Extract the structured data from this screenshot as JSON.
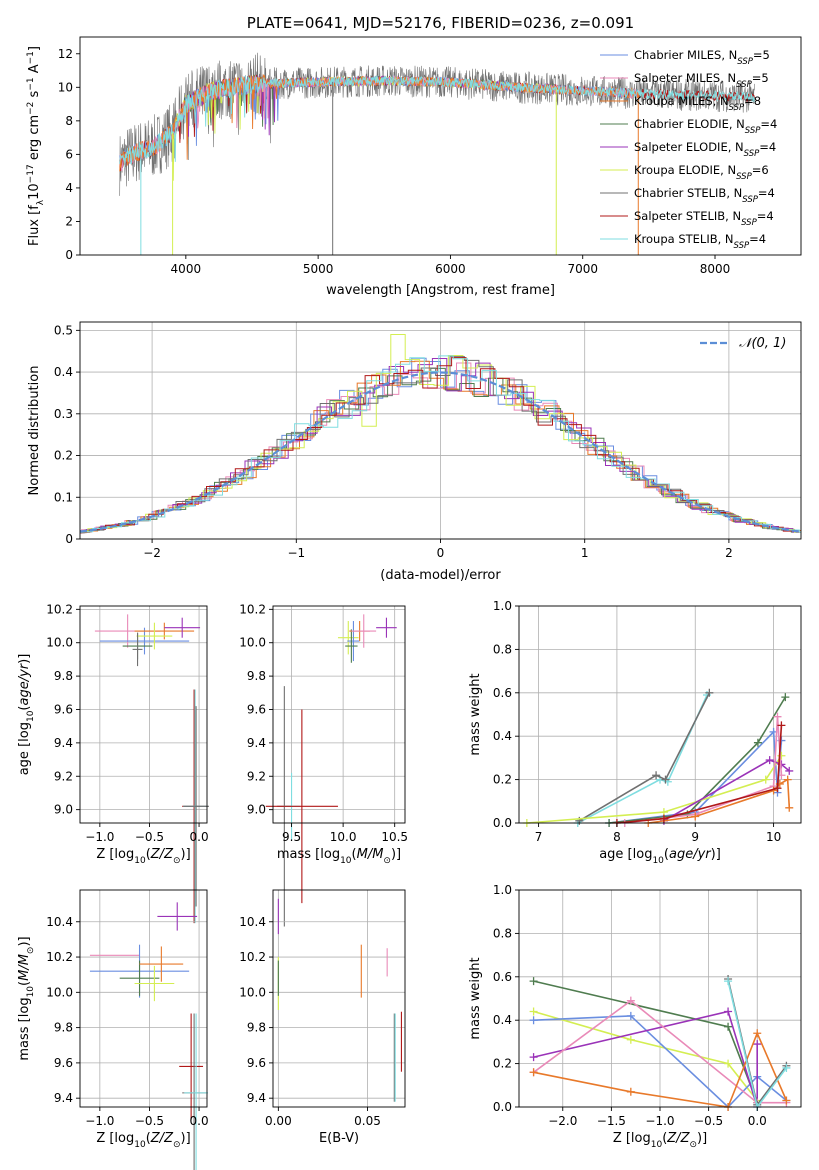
{
  "colors": {
    "Chabrier MILES": "#6a8ee0",
    "Salpeter MILES": "#e98ab8",
    "Kroupa MILES": "#e8792a",
    "Chabrier ELODIE": "#4f7c4f",
    "Salpeter ELODIE": "#9a33b8",
    "Kroupa ELODIE": "#d4ee52",
    "Chabrier STELIB": "#707070",
    "Salpeter STELIB": "#b01818",
    "Kroupa STELIB": "#7fdde0",
    "normal": "#5b8ed6"
  },
  "chart_data": [
    {
      "id": "spectrum",
      "type": "line",
      "title": "PLATE=0641, MJD=52176, FIBERID=0236, z=0.091",
      "xlabel": "wavelength [Angstrom, rest frame]",
      "ylabel": "Flux [fλ10⁻¹⁷ erg cm⁻² s⁻¹ A⁻¹]",
      "xlim": [
        3200,
        8650
      ],
      "ylim": [
        0,
        13
      ],
      "xticks": [
        4000,
        5000,
        6000,
        7000,
        8000
      ],
      "yticks": [
        0,
        2,
        4,
        6,
        8,
        10,
        12
      ],
      "legend_position": "right",
      "legend": [
        {
          "model": "Chabrier MILES",
          "text": "Chabrier MILES, N",
          "sub": "SSP",
          "suffix": "=5"
        },
        {
          "model": "Salpeter MILES",
          "text": "Salpeter MILES, N",
          "sub": "SSP",
          "suffix": "=5"
        },
        {
          "model": "Kroupa MILES",
          "text": "Kroupa MILES, N",
          "sub": "SSP",
          "suffix": "=8"
        },
        {
          "model": "Chabrier ELODIE",
          "text": "Chabrier ELODIE, N",
          "sub": "SSP",
          "suffix": "=4"
        },
        {
          "model": "Salpeter ELODIE",
          "text": "Salpeter ELODIE, N",
          "sub": "SSP",
          "suffix": "=4"
        },
        {
          "model": "Kroupa ELODIE",
          "text": "Kroupa ELODIE, N",
          "sub": "SSP",
          "suffix": "=6"
        },
        {
          "model": "Chabrier STELIB",
          "text": "Chabrier STELIB, N",
          "sub": "SSP",
          "suffix": "=4"
        },
        {
          "model": "Salpeter STELIB",
          "text": "Salpeter STELIB, N",
          "sub": "SSP",
          "suffix": "=4"
        },
        {
          "model": "Kroupa STELIB",
          "text": "Kroupa STELIB, N",
          "sub": "SSP",
          "suffix": "=4"
        }
      ],
      "continuum": [
        [
          3480,
          5.3
        ],
        [
          3550,
          5.8
        ],
        [
          3650,
          6.2
        ],
        [
          3750,
          6.4
        ],
        [
          3900,
          7.3
        ],
        [
          4000,
          9.0
        ],
        [
          4200,
          9.8
        ],
        [
          4500,
          10.2
        ],
        [
          5000,
          10.3
        ],
        [
          5500,
          10.4
        ],
        [
          6000,
          10.3
        ],
        [
          6500,
          10.0
        ],
        [
          7000,
          9.8
        ],
        [
          7500,
          9.6
        ],
        [
          8000,
          9.5
        ],
        [
          8300,
          9.4
        ]
      ],
      "noisy_series": {
        "model": "Chabrier STELIB",
        "range": [
          3460,
          7400
        ],
        "scatter": 1.2
      },
      "model_ranges": {
        "MILES": [
          3500,
          7420
        ],
        "ELODIE": [
          3900,
          6800
        ],
        "STELIB": [
          3500,
          8300
        ]
      },
      "line_drops": [
        {
          "model": "Kroupa STELIB",
          "x": 3660,
          "y": 0
        },
        {
          "model": "Kroupa ELODIE",
          "x": 3900,
          "y": 0
        },
        {
          "model": "Chabrier STELIB",
          "x": 5110,
          "y": 0
        },
        {
          "model": "Kroupa ELODIE",
          "x": 6800,
          "y": 0
        },
        {
          "model": "Kroupa MILES",
          "x": 7420,
          "y": 0
        }
      ]
    },
    {
      "id": "residuals",
      "type": "histogram",
      "xlabel": "(data-model)/error",
      "ylabel": "Normed distribution",
      "xlim": [
        -2.5,
        2.5
      ],
      "ylim": [
        0,
        0.52
      ],
      "xticks": [
        -2,
        -1,
        0,
        1,
        2
      ],
      "yticks": [
        0,
        0.1,
        0.2,
        0.3,
        0.4,
        0.5
      ],
      "bin_width": 0.1,
      "legend_position": "upper right",
      "reference_curve": {
        "name": "𝒩(0, 1)",
        "mean": 0,
        "sigma": 1
      },
      "special_bins": [
        {
          "model": "Kroupa ELODIE",
          "x": -0.25,
          "value": 0.49
        },
        {
          "model": "Kroupa ELODIE",
          "x": -0.45,
          "value": 0.27
        }
      ]
    },
    {
      "id": "age-vs-z",
      "type": "scatter-errorbar",
      "xlabel": "Z [log10(Z/Z⊙)]",
      "ylabel": "age  [log10(age/yr)]",
      "xlim": [
        -1.2,
        0.08
      ],
      "ylim": [
        8.92,
        10.22
      ],
      "xticks": [
        -1.0,
        -0.5,
        0.0
      ],
      "xticklabels": [
        "−1.0",
        "−0.5",
        "0.0"
      ],
      "yticks": [
        9.0,
        9.2,
        9.4,
        9.6,
        9.8,
        10.0,
        10.2
      ],
      "yticklabels": [
        "9.0",
        "9.2",
        "9.4",
        "9.6",
        "9.8",
        "10.0",
        "10.2"
      ],
      "points": [
        {
          "model": "Salpeter MILES",
          "x": -0.72,
          "xerr": 0.33,
          "y": 10.07,
          "yerr": 0.1
        },
        {
          "model": "Chabrier MILES",
          "x": -0.55,
          "xerr": 0.45,
          "y": 10.01,
          "yerr": 0.08
        },
        {
          "model": "Chabrier ELODIE",
          "x": -0.62,
          "xerr": 0.15,
          "y": 9.98,
          "yerr": 0.08
        },
        {
          "model": "Kroupa MILES",
          "x": -0.35,
          "xerr": 0.3,
          "y": 10.07,
          "yerr": 0.05
        },
        {
          "model": "Kroupa ELODIE",
          "x": -0.45,
          "xerr": 0.18,
          "y": 10.04,
          "yerr": 0.08
        },
        {
          "model": "Salpeter ELODIE",
          "x": -0.17,
          "xerr": 0.18,
          "y": 10.09,
          "yerr": 0.06
        },
        {
          "model": "Chabrier STELIB",
          "x": -0.62,
          "xerr": 0.05,
          "y": 9.96,
          "yerr": 0.1
        },
        {
          "model": "Salpeter STELIB",
          "x": -0.05,
          "xerr": 0.12,
          "y": 9.02,
          "yerr": 0.7
        },
        {
          "model": "Kroupa STELIB",
          "x": -0.04,
          "xerr": 0.12,
          "y": 9.02,
          "yerr": 0.7
        },
        {
          "model": "Chabrier STELIB",
          "x": -0.03,
          "xerr": 0.13,
          "y": 9.02,
          "yerr": 0.6
        }
      ]
    },
    {
      "id": "age-vs-mass",
      "type": "scatter-errorbar",
      "xlabel": "mass [log10(M/M⊙)]",
      "ylabel": "",
      "xlim": [
        9.32,
        10.6
      ],
      "ylim": [
        8.92,
        10.22
      ],
      "xticks": [
        9.5,
        10.0,
        10.5
      ],
      "xticklabels": [
        "9.5",
        "10.0",
        "10.5"
      ],
      "yticks": [
        9.0,
        9.2,
        9.4,
        9.6,
        9.8,
        10.0,
        10.2
      ],
      "yticklabels": [
        "9.0",
        "9.2",
        "9.4",
        "9.6",
        "9.8",
        "10.0",
        "10.2"
      ],
      "points": [
        {
          "model": "Chabrier STELIB",
          "x": 9.43,
          "xerr": 0.07,
          "y": 9.02,
          "yerr": 0.72
        },
        {
          "model": "Kroupa STELIB",
          "x": 9.5,
          "xerr": 0.08,
          "y": 9.02,
          "yerr": 0.2
        },
        {
          "model": "Salpeter STELIB",
          "x": 9.6,
          "xerr": 0.35,
          "y": 9.02,
          "yerr": 0.58
        },
        {
          "model": "Kroupa ELODIE",
          "x": 10.05,
          "xerr": 0.1,
          "y": 10.03,
          "yerr": 0.1
        },
        {
          "model": "Chabrier MILES",
          "x": 10.1,
          "xerr": 0.06,
          "y": 10.01,
          "yerr": 0.12
        },
        {
          "model": "Chabrier ELODIE",
          "x": 10.08,
          "xerr": 0.06,
          "y": 9.98,
          "yerr": 0.1
        },
        {
          "model": "Kroupa MILES",
          "x": 10.16,
          "xerr": 0.1,
          "y": 10.07,
          "yerr": 0.06
        },
        {
          "model": "Salpeter MILES",
          "x": 10.2,
          "xerr": 0.12,
          "y": 10.07,
          "yerr": 0.1
        },
        {
          "model": "Salpeter ELODIE",
          "x": 10.42,
          "xerr": 0.1,
          "y": 10.09,
          "yerr": 0.06
        }
      ]
    },
    {
      "id": "weight-vs-age",
      "type": "line",
      "xlabel": "age  [log10(age/yr)]",
      "ylabel": "mass weight",
      "xlim": [
        6.75,
        10.35
      ],
      "ylim": [
        0,
        1.0
      ],
      "xticks": [
        7,
        8,
        9,
        10
      ],
      "xticklabels": [
        "7",
        "8",
        "9",
        "10"
      ],
      "yticks": [
        0,
        0.2,
        0.4,
        0.6,
        0.8,
        1.0
      ],
      "yticklabels": [
        "0.0",
        "0.2",
        "0.4",
        "0.6",
        "0.8",
        "1.0"
      ],
      "series": [
        {
          "model": "Kroupa STELIB",
          "x": [
            7.5,
            8.55,
            8.65,
            9.15
          ],
          "y": [
            0.0,
            0.2,
            0.19,
            0.59
          ]
        },
        {
          "model": "Chabrier STELIB",
          "x": [
            7.52,
            8.5,
            8.62,
            9.18
          ],
          "y": [
            0.01,
            0.22,
            0.2,
            0.6
          ]
        },
        {
          "model": "Chabrier MILES",
          "x": [
            7.9,
            9.0,
            10.0,
            10.05,
            10.1
          ],
          "y": [
            0.0,
            0.05,
            0.42,
            0.14,
            0.38
          ]
        },
        {
          "model": "Chabrier ELODIE",
          "x": [
            7.9,
            8.9,
            9.8,
            10.15
          ],
          "y": [
            0.0,
            0.04,
            0.37,
            0.58
          ]
        },
        {
          "model": "Kroupa ELODIE",
          "x": [
            6.85,
            8.6,
            9.9,
            10.1
          ],
          "y": [
            0.0,
            0.05,
            0.2,
            0.31
          ]
        },
        {
          "model": "Salpeter ELODIE",
          "x": [
            8.6,
            9.95,
            10.1,
            10.2
          ],
          "y": [
            0.01,
            0.29,
            0.27,
            0.24
          ]
        },
        {
          "model": "Salpeter MILES",
          "x": [
            8.1,
            9.0,
            10.0,
            10.05,
            10.1
          ],
          "y": [
            0.0,
            0.04,
            0.17,
            0.49,
            0.22
          ]
        },
        {
          "model": "Kroupa MILES",
          "x": [
            8.4,
            9.0,
            10.0,
            10.08,
            10.18,
            10.2
          ],
          "y": [
            0.0,
            0.03,
            0.15,
            0.18,
            0.2,
            0.07
          ]
        },
        {
          "model": "Salpeter STELIB",
          "x": [
            8.0,
            8.6,
            10.05,
            10.1
          ],
          "y": [
            0.0,
            0.02,
            0.16,
            0.45
          ]
        }
      ]
    },
    {
      "id": "mass-vs-z",
      "type": "scatter-errorbar",
      "xlabel": "Z [log10(Z/Z⊙)]",
      "ylabel": "mass [log10(M/M⊙)]",
      "xlim": [
        -1.2,
        0.08
      ],
      "ylim": [
        9.35,
        10.58
      ],
      "xticks": [
        -1.0,
        -0.5,
        0.0
      ],
      "xticklabels": [
        "−1.0",
        "−0.5",
        "0.0"
      ],
      "yticks": [
        9.4,
        9.6,
        9.8,
        10.0,
        10.2,
        10.4
      ],
      "yticklabels": [
        "9.4",
        "9.6",
        "9.8",
        "10.0",
        "10.2",
        "10.4"
      ],
      "points": [
        {
          "model": "Salpeter MILES",
          "x": -0.85,
          "xerr": 0.25,
          "y": 10.21,
          "yerr": 0.0
        },
        {
          "model": "Chabrier MILES",
          "x": -0.6,
          "xerr": 0.5,
          "y": 10.12,
          "yerr": 0.15
        },
        {
          "model": "Chabrier ELODIE",
          "x": -0.6,
          "xerr": 0.2,
          "y": 10.08,
          "yerr": 0.1
        },
        {
          "model": "Kroupa MILES",
          "x": -0.38,
          "xerr": 0.22,
          "y": 10.16,
          "yerr": 0.1
        },
        {
          "model": "Kroupa ELODIE",
          "x": -0.45,
          "xerr": 0.2,
          "y": 10.05,
          "yerr": 0.1
        },
        {
          "model": "Salpeter ELODIE",
          "x": -0.22,
          "xerr": 0.2,
          "y": 10.43,
          "yerr": 0.08
        },
        {
          "model": "Salpeter STELIB",
          "x": -0.08,
          "xerr": 0.12,
          "y": 9.58,
          "yerr": 0.3
        },
        {
          "model": "Chabrier STELIB",
          "x": -0.05,
          "xerr": 0.12,
          "y": 9.43,
          "yerr": 0.45
        },
        {
          "model": "Kroupa STELIB",
          "x": -0.03,
          "xerr": 0.12,
          "y": 9.43,
          "yerr": 0.45
        }
      ]
    },
    {
      "id": "mass-vs-ebv",
      "type": "scatter-errorbar",
      "xlabel": "E(B-V)",
      "ylabel": "",
      "xlim": [
        -0.003,
        0.071
      ],
      "ylim": [
        9.35,
        10.58
      ],
      "xticks": [
        0.0,
        0.05
      ],
      "xticklabels": [
        "0.00",
        "0.05"
      ],
      "yticks": [
        9.4,
        9.6,
        9.8,
        10.0,
        10.2,
        10.4
      ],
      "yticklabels": [
        "9.4",
        "9.6",
        "9.8",
        "10.0",
        "10.2",
        "10.4"
      ],
      "points": [
        {
          "model": "Salpeter ELODIE",
          "x": 0.0,
          "xerr": 0.0,
          "y": 10.43,
          "yerr": 0.1
        },
        {
          "model": "Kroupa ELODIE",
          "x": 0.0,
          "xerr": 0.0,
          "y": 10.05,
          "yerr": 0.15
        },
        {
          "model": "Chabrier ELODIE",
          "x": 0.0,
          "xerr": 0.0,
          "y": 10.08,
          "yerr": 0.1
        },
        {
          "model": "Kroupa MILES",
          "x": 0.0465,
          "xerr": 0.0,
          "y": 10.12,
          "yerr": 0.15
        },
        {
          "model": "Salpeter MILES",
          "x": 0.061,
          "xerr": 0.0,
          "y": 10.17,
          "yerr": 0.08
        },
        {
          "model": "Chabrier STELIB",
          "x": 0.065,
          "xerr": 0.0,
          "y": 9.63,
          "yerr": 0.25
        },
        {
          "model": "Kroupa STELIB",
          "x": 0.0655,
          "xerr": 0.0,
          "y": 9.63,
          "yerr": 0.25
        },
        {
          "model": "Salpeter STELIB",
          "x": 0.069,
          "xerr": 0.0,
          "y": 9.72,
          "yerr": 0.17
        }
      ]
    },
    {
      "id": "weight-vs-z",
      "type": "line",
      "xlabel": "Z [log10(Z/Z⊙)]",
      "ylabel": "mass weight",
      "xlim": [
        -2.45,
        0.45
      ],
      "ylim": [
        0,
        1.0
      ],
      "xticks": [
        -2.0,
        -1.5,
        -1.0,
        -0.5,
        0.0
      ],
      "xticklabels": [
        "−2.0",
        "−1.5",
        "−1.0",
        "−0.5",
        "0.0"
      ],
      "yticks": [
        0,
        0.2,
        0.4,
        0.6,
        0.8,
        1.0
      ],
      "yticklabels": [
        "0.0",
        "0.2",
        "0.4",
        "0.6",
        "0.8",
        "1.0"
      ],
      "series": [
        {
          "model": "Chabrier ELODIE",
          "x": [
            -2.3,
            -0.3,
            0.0
          ],
          "y": [
            0.58,
            0.37,
            0.02
          ]
        },
        {
          "model": "Kroupa ELODIE",
          "x": [
            -2.3,
            -1.3,
            -0.3,
            0.0
          ],
          "y": [
            0.44,
            0.31,
            0.2,
            0.03
          ]
        },
        {
          "model": "Chabrier MILES",
          "x": [
            -2.3,
            -1.3,
            -0.3,
            0.0,
            0.3
          ],
          "y": [
            0.4,
            0.42,
            0.0,
            0.14,
            0.03
          ]
        },
        {
          "model": "Salpeter ELODIE",
          "x": [
            -2.3,
            -0.3,
            0.0,
            0.0
          ],
          "y": [
            0.23,
            0.44,
            0.0,
            0.29
          ]
        },
        {
          "model": "Salpeter MILES",
          "x": [
            -2.3,
            -1.3,
            0.0,
            0.3
          ],
          "y": [
            0.16,
            0.49,
            0.02,
            0.02
          ]
        },
        {
          "model": "Kroupa MILES",
          "x": [
            -2.3,
            -1.3,
            -0.3,
            0.0,
            0.3
          ],
          "y": [
            0.16,
            0.07,
            0.0,
            0.34,
            0.03
          ]
        },
        {
          "model": "Chabrier STELIB",
          "x": [
            -0.3,
            0.0,
            0.3
          ],
          "y": [
            0.59,
            0.01,
            0.19
          ]
        },
        {
          "model": "Kroupa STELIB",
          "x": [
            -0.3,
            0.0,
            0.3
          ],
          "y": [
            0.58,
            0.0,
            0.18
          ]
        }
      ]
    }
  ]
}
